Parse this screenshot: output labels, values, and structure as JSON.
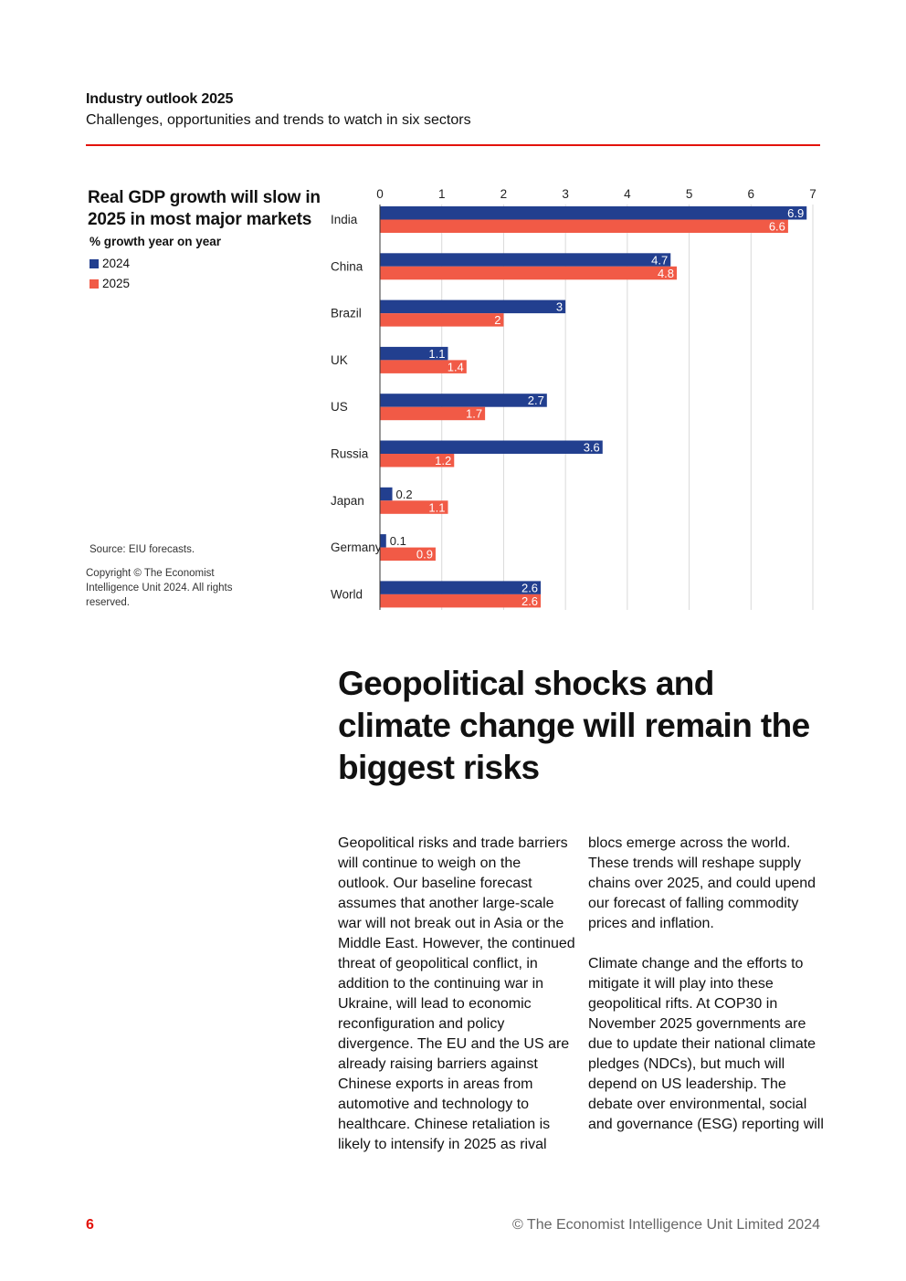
{
  "header": {
    "title": "Industry outlook 2025",
    "subtitle": "Challenges, opportunities and trends to watch in six sectors"
  },
  "chart_data": {
    "type": "bar",
    "orientation": "horizontal",
    "title": "Real GDP growth will slow in 2025 in most major markets",
    "units": "% growth year on year",
    "categories": [
      "India",
      "China",
      "Brazil",
      "UK",
      "US",
      "Russia",
      "Japan",
      "Germany",
      "World"
    ],
    "series": [
      {
        "name": "2024",
        "color": "#223f8f",
        "values": [
          6.9,
          4.7,
          3,
          1.1,
          2.7,
          3.6,
          0.2,
          0.1,
          2.6
        ]
      },
      {
        "name": "2025",
        "color": "#f15a46",
        "values": [
          6.6,
          4.8,
          2,
          1.4,
          1.7,
          1.2,
          1.1,
          0.9,
          2.6
        ]
      }
    ],
    "xlim": [
      0,
      7
    ],
    "xticks": [
      0,
      1,
      2,
      3,
      4,
      5,
      6,
      7
    ],
    "grid": true,
    "legend": "left",
    "source": "Source: EIU forecasts.",
    "copyright": "Copyright © The Economist Intelligence Unit 2024. All rights reserved."
  },
  "article": {
    "headline": "Geopolitical shocks and climate change will remain the biggest risks",
    "col1": "Geopolitical risks and trade barriers will continue to weigh on the outlook. Our baseline forecast assumes that another large-scale war will not break out in Asia or the Middle East. However, the continued threat of geopolitical conflict, in addition to the continuing war in Ukraine, will lead to economic reconfiguration and policy divergence. The EU and the US are already raising barriers against Chinese exports in areas from automotive and technology to healthcare. Chinese retaliation is likely to intensify in 2025 as rival",
    "col2_p1": "blocs emerge across the world. These trends will reshape supply chains over 2025, and could upend our forecast of falling commodity prices and inflation.",
    "col2_p2": "Climate change and the efforts to mitigate it will play into these geopolitical rifts. At COP30 in November 2025 governments are due to update their national climate pledges (NDCs), but much will depend on US leadership. The debate over environmental, social and governance (ESG) reporting will"
  },
  "footer": {
    "page_number": "6",
    "copyright": "© The Economist Intelligence Unit Limited 2024"
  }
}
